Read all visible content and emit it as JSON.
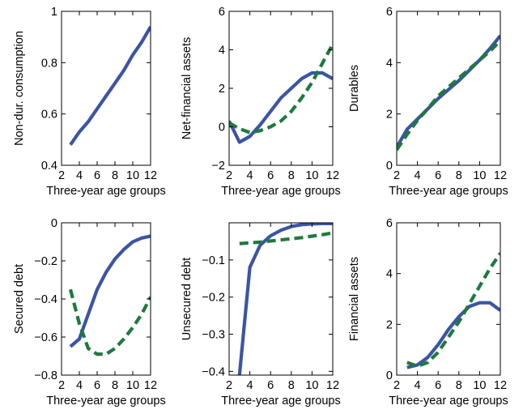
{
  "colors": {
    "series_1": "#3b55a4",
    "series_2": "#1e7a3c"
  },
  "chart_data": [
    {
      "type": "line",
      "title": "",
      "xlabel": "Three-year age groups",
      "ylabel": "Non-dur. consumption",
      "xlim": [
        2,
        12
      ],
      "ylim": [
        0.4,
        1
      ],
      "xticks": [
        2,
        4,
        6,
        8,
        10,
        12
      ],
      "xtick_labels": [
        "2",
        "4",
        "6",
        "8",
        "10",
        "12"
      ],
      "yticks": [
        0.4,
        0.6,
        0.8,
        1
      ],
      "ytick_labels": [
        "0.4",
        "0.6",
        "0.8",
        "1"
      ],
      "series": [
        {
          "style": "solid",
          "color": "#3b55a4",
          "x": [
            3,
            4,
            5,
            6,
            7,
            8,
            9,
            10,
            11,
            12
          ],
          "y": [
            0.48,
            0.53,
            0.57,
            0.62,
            0.67,
            0.72,
            0.77,
            0.83,
            0.88,
            0.94
          ]
        }
      ]
    },
    {
      "type": "line",
      "title": "",
      "xlabel": "Three-year age groups",
      "ylabel": "Net-financial assets",
      "xlim": [
        2,
        12
      ],
      "ylim": [
        -2,
        6
      ],
      "xticks": [
        2,
        4,
        6,
        8,
        10,
        12
      ],
      "xtick_labels": [
        "2",
        "4",
        "6",
        "8",
        "10",
        "12"
      ],
      "yticks": [
        -2,
        0,
        2,
        4,
        6
      ],
      "ytick_labels": [
        "−2",
        "0",
        "2",
        "4",
        "6"
      ],
      "series": [
        {
          "style": "solid",
          "color": "#3b55a4",
          "x": [
            2,
            3,
            4,
            5,
            6,
            7,
            8,
            9,
            10,
            11,
            12
          ],
          "y": [
            0.3,
            -0.8,
            -0.5,
            0.1,
            0.8,
            1.5,
            2.0,
            2.5,
            2.8,
            2.8,
            2.5
          ]
        },
        {
          "style": "dashed",
          "color": "#1e7a3c",
          "x": [
            2,
            3,
            4,
            5,
            6,
            7,
            8,
            9,
            10,
            11,
            12
          ],
          "y": [
            0.2,
            -0.1,
            -0.3,
            -0.2,
            0.0,
            0.3,
            0.8,
            1.5,
            2.3,
            3.3,
            4.3
          ]
        }
      ]
    },
    {
      "type": "line",
      "title": "",
      "xlabel": "Three-year age groups",
      "ylabel": "Durables",
      "xlim": [
        2,
        12
      ],
      "ylim": [
        0,
        6
      ],
      "xticks": [
        2,
        4,
        6,
        8,
        10,
        12
      ],
      "xtick_labels": [
        "2",
        "4",
        "6",
        "8",
        "10",
        "12"
      ],
      "yticks": [
        0,
        2,
        4,
        6
      ],
      "ytick_labels": [
        "0",
        "2",
        "4",
        "6"
      ],
      "series": [
        {
          "style": "solid",
          "color": "#3b55a4",
          "x": [
            2,
            3,
            4,
            5,
            6,
            7,
            8,
            9,
            10,
            11,
            12
          ],
          "y": [
            0.7,
            1.4,
            1.8,
            2.2,
            2.6,
            2.95,
            3.3,
            3.7,
            4.1,
            4.55,
            5.05
          ]
        },
        {
          "style": "dashed",
          "color": "#1e7a3c",
          "x": [
            2,
            3,
            4,
            5,
            6,
            7,
            8,
            9,
            10,
            11,
            12
          ],
          "y": [
            0.6,
            1.2,
            1.75,
            2.2,
            2.7,
            3.05,
            3.4,
            3.75,
            4.1,
            4.45,
            4.85
          ]
        }
      ]
    },
    {
      "type": "line",
      "title": "",
      "xlabel": "Three-year age groups",
      "ylabel": "Secured debt",
      "xlim": [
        2,
        12
      ],
      "ylim": [
        -0.8,
        0
      ],
      "xticks": [
        2,
        4,
        6,
        8,
        10,
        12
      ],
      "xtick_labels": [
        "2",
        "4",
        "6",
        "8",
        "10",
        "12"
      ],
      "yticks": [
        -0.8,
        -0.6,
        -0.4,
        -0.2,
        0
      ],
      "ytick_labels": [
        "−0.8",
        "−0.6",
        "−0.4",
        "−0.2",
        "0"
      ],
      "series": [
        {
          "style": "solid",
          "color": "#3b55a4",
          "x": [
            3,
            4,
            5,
            6,
            7,
            8,
            9,
            10,
            11,
            12
          ],
          "y": [
            -0.65,
            -0.61,
            -0.48,
            -0.35,
            -0.26,
            -0.19,
            -0.14,
            -0.1,
            -0.08,
            -0.07
          ]
        },
        {
          "style": "dashed",
          "color": "#1e7a3c",
          "x": [
            3,
            4,
            5,
            6,
            7,
            8,
            9,
            10,
            11,
            12
          ],
          "y": [
            -0.35,
            -0.53,
            -0.66,
            -0.69,
            -0.69,
            -0.66,
            -0.61,
            -0.55,
            -0.48,
            -0.39
          ]
        }
      ]
    },
    {
      "type": "line",
      "title": "",
      "xlabel": "Three-year age groups",
      "ylabel": "Unsecured debt",
      "xlim": [
        2,
        12
      ],
      "ylim": [
        -0.41,
        0
      ],
      "xticks": [
        2,
        4,
        6,
        8,
        10,
        12
      ],
      "xtick_labels": [
        "2",
        "4",
        "6",
        "8",
        "10",
        "12"
      ],
      "yticks": [
        -0.4,
        -0.3,
        -0.2,
        -0.1
      ],
      "ytick_labels": [
        "−0.4",
        "−0.3",
        "−0.2",
        "−0.1"
      ],
      "series": [
        {
          "style": "solid",
          "color": "#3b55a4",
          "x": [
            3,
            4,
            5,
            6,
            7,
            8,
            9,
            10,
            11,
            12
          ],
          "y": [
            -0.41,
            -0.12,
            -0.06,
            -0.035,
            -0.02,
            -0.01,
            -0.005,
            -0.003,
            -0.002,
            -0.002
          ]
        },
        {
          "style": "dashed",
          "color": "#1e7a3c",
          "x": [
            3,
            4,
            5,
            6,
            7,
            8,
            9,
            10,
            11,
            12
          ],
          "y": [
            -0.056,
            -0.054,
            -0.052,
            -0.049,
            -0.046,
            -0.043,
            -0.04,
            -0.036,
            -0.032,
            -0.027
          ]
        }
      ]
    },
    {
      "type": "line",
      "title": "",
      "xlabel": "Three-year age groups",
      "ylabel": "Financial assets",
      "xlim": [
        2,
        12
      ],
      "ylim": [
        0,
        6
      ],
      "xticks": [
        2,
        4,
        6,
        8,
        10,
        12
      ],
      "xtick_labels": [
        "2",
        "4",
        "6",
        "8",
        "10",
        "12"
      ],
      "yticks": [
        0,
        2,
        4,
        6
      ],
      "ytick_labels": [
        "0",
        "2",
        "4",
        "6"
      ],
      "series": [
        {
          "style": "solid",
          "color": "#3b55a4",
          "x": [
            3,
            4,
            5,
            6,
            7,
            8,
            9,
            10,
            11,
            12
          ],
          "y": [
            0.3,
            0.4,
            0.7,
            1.2,
            1.8,
            2.3,
            2.7,
            2.85,
            2.85,
            2.55
          ]
        },
        {
          "style": "dashed",
          "color": "#1e7a3c",
          "x": [
            3,
            4,
            5,
            6,
            7,
            8,
            9,
            10,
            11,
            12
          ],
          "y": [
            0.5,
            0.35,
            0.5,
            0.9,
            1.5,
            2.1,
            2.8,
            3.5,
            4.2,
            4.8
          ]
        }
      ]
    }
  ]
}
